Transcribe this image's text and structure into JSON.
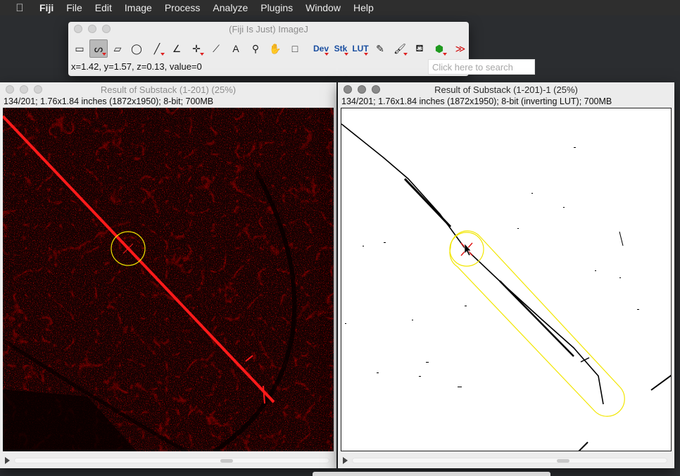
{
  "menubar": {
    "apple_icon": "apple-icon",
    "app_name": "Fiji",
    "items": [
      "File",
      "Edit",
      "Image",
      "Process",
      "Analyze",
      "Plugins",
      "Window",
      "Help"
    ]
  },
  "fiji_window": {
    "title": "(Fiji Is Just) ImageJ",
    "tools": [
      {
        "name": "rectangle-tool",
        "glyph": "▭"
      },
      {
        "name": "freehand-tool",
        "glyph": "ᔕ"
      },
      {
        "name": "polygon-tool",
        "glyph": "▱"
      },
      {
        "name": "oval-tool",
        "glyph": "◯"
      },
      {
        "name": "line-tool",
        "glyph": "╱"
      },
      {
        "name": "angle-tool",
        "glyph": "∠"
      },
      {
        "name": "point-tool",
        "glyph": "✛"
      },
      {
        "name": "wand-tool",
        "glyph": "⟋"
      },
      {
        "name": "text-tool",
        "glyph": "A"
      },
      {
        "name": "magnifier-tool",
        "glyph": "⚲"
      },
      {
        "name": "hand-tool",
        "glyph": "✋"
      },
      {
        "name": "color-picker-tool",
        "glyph": "□"
      },
      {
        "name": "dev-menu",
        "glyph": "Dev"
      },
      {
        "name": "stk-menu",
        "glyph": "Stk"
      },
      {
        "name": "lut-menu",
        "glyph": "LUT"
      },
      {
        "name": "pencil-tool",
        "glyph": "✎"
      },
      {
        "name": "brush-tool",
        "glyph": "🖌"
      },
      {
        "name": "flood-fill-tool",
        "glyph": "⛾"
      },
      {
        "name": "3d-viewer-tool",
        "glyph": "⬢"
      },
      {
        "name": "more-tools",
        "glyph": "≫"
      }
    ],
    "status": "x=1.42, y=1.57, z=0.13, value=0",
    "search_placeholder": "Click here to search"
  },
  "left_window": {
    "title": "Result of Substack (1-201) (25%)",
    "info": "134/201; 1.76x1.84 inches (1872x1950); 8-bit; 700MB"
  },
  "right_window": {
    "title": "Result of Substack (1-201)-1 (25%)",
    "info": "134/201; 1.76x1.84 inches (1872x1950); 8-bit (inverting LUT); 700MB"
  },
  "colors": {
    "menubar_bg": "#2e2e2e",
    "roi_yellow": "#f2e600",
    "signal_red": "#ff1a1a"
  }
}
